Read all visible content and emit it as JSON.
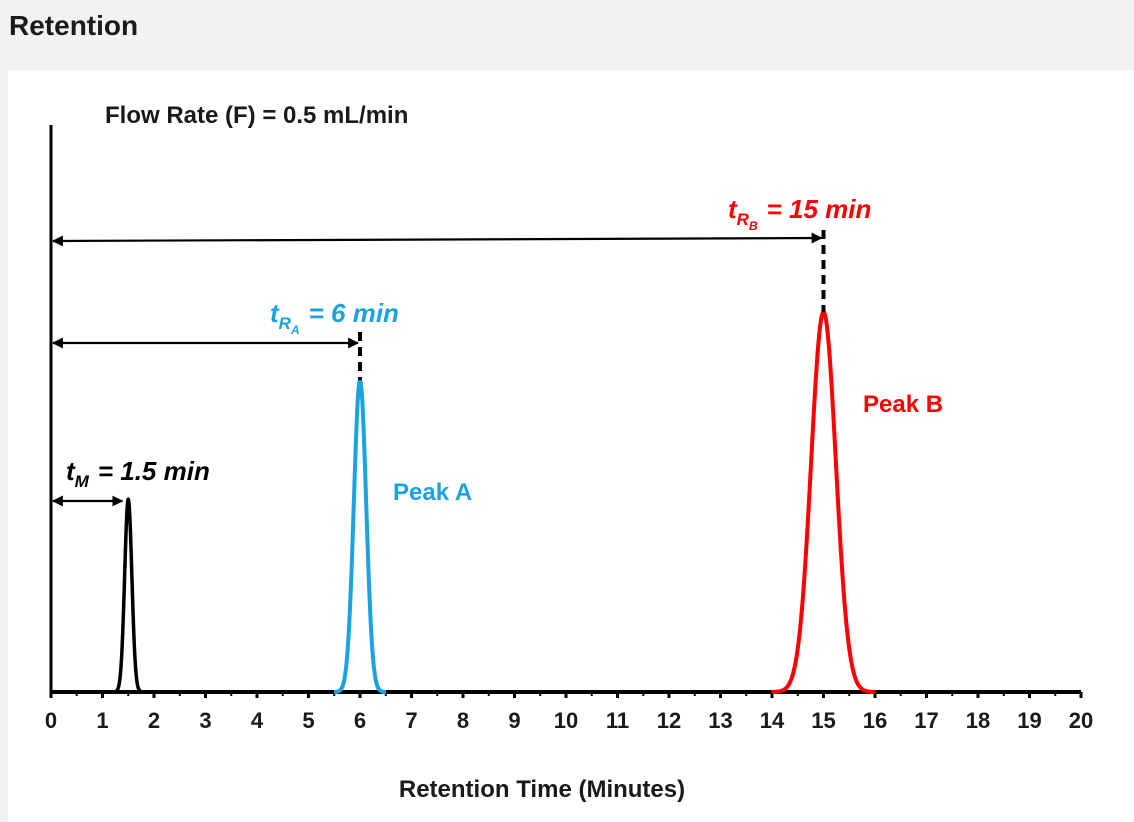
{
  "page": {
    "title": "Retention"
  },
  "chart_data": {
    "type": "line",
    "xlabel": "Retention Time (Minutes)",
    "ylabel": "",
    "xlim": [
      0,
      20
    ],
    "x_ticks": [
      "0",
      "1",
      "2",
      "3",
      "4",
      "5",
      "6",
      "7",
      "8",
      "9",
      "10",
      "11",
      "12",
      "13",
      "14",
      "15",
      "16",
      "17",
      "18",
      "19",
      "20"
    ],
    "grid": false,
    "annotations": {
      "flow_rate": "Flow Rate (F) = 0.5 mL/min",
      "tm": {
        "symbol": "t",
        "sub": "M",
        "rest": "= 1.5 min",
        "value": 1.5,
        "color": "#000000"
      },
      "tra": {
        "symbol": "t",
        "sub": "R",
        "subsub": "A",
        "rest": "= 6 min",
        "value": 6,
        "color": "#1aa3e0"
      },
      "trb": {
        "symbol": "t",
        "sub": "R",
        "subsub": "B",
        "rest": "= 15 min",
        "value": 15,
        "color": "#ff0000"
      }
    },
    "series": [
      {
        "name": "",
        "center": 1.5,
        "sigma": 0.07,
        "height": 0.34,
        "color": "#000000"
      },
      {
        "name": "Peak A",
        "center": 6,
        "sigma": 0.12,
        "height": 0.55,
        "color": "#1aa3e0"
      },
      {
        "name": "Peak B",
        "center": 15,
        "sigma": 0.24,
        "height": 0.67,
        "color": "#ff0000"
      }
    ]
  }
}
